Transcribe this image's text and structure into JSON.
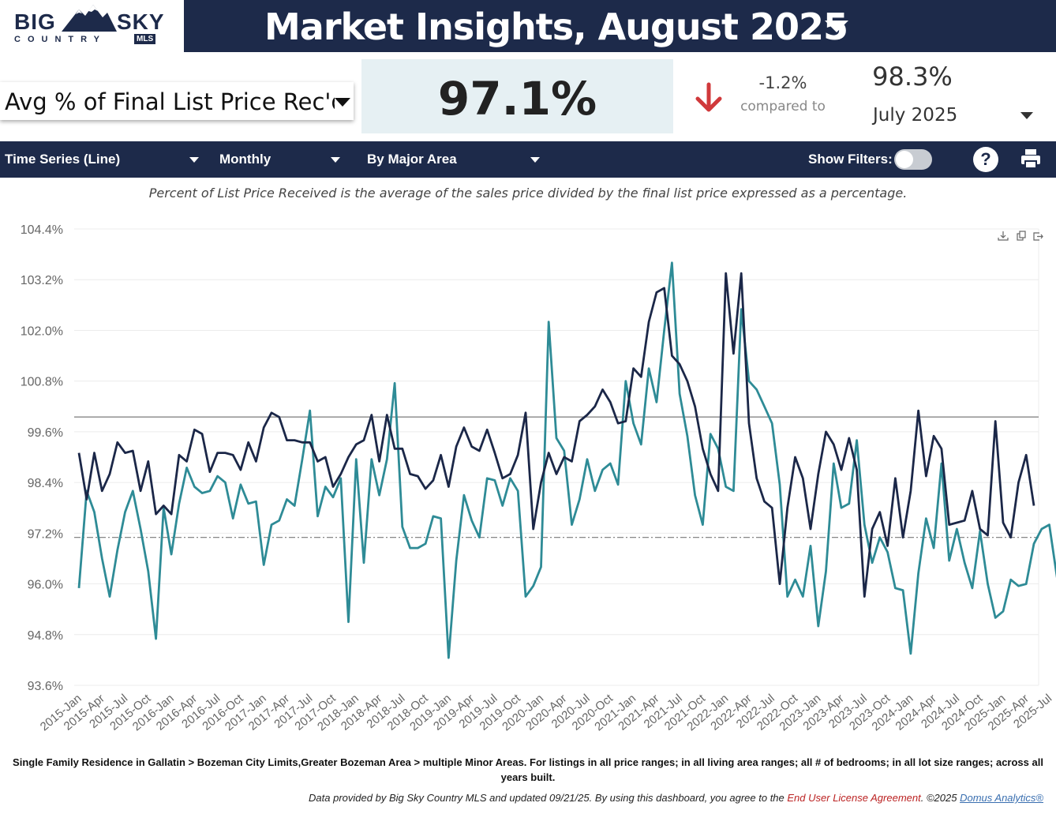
{
  "header": {
    "logo_big": "BIG",
    "logo_sky": "SKY",
    "logo_country": "COUNTRY",
    "logo_mls": "MLS",
    "title": "Market Insights, August 2025"
  },
  "metric": {
    "selected": "Avg % of Final List Price Rec'd",
    "value": "97.1%",
    "change": "-1.2%",
    "compared_to": "compared to",
    "prev_value": "98.3%",
    "prev_period": "July 2025"
  },
  "toolbar": {
    "chart_type": "Time Series (Line)",
    "interval": "Monthly",
    "grouping": "By Major Area",
    "show_filters": "Show Filters:",
    "help": "?"
  },
  "description": "Percent of List Price Received is the average of the sales price divided by the final list price expressed as a percentage.",
  "footnote": "Single Family Residence in Gallatin > Bozeman City Limits,Greater Bozeman Area > multiple Minor Areas. For listings in all price ranges; in all living area ranges; all # of bedrooms; in all lot size ranges; across all years built.",
  "credit": {
    "text": "Data provided by Big Sky Country MLS and updated 09/21/25.  By using this dashboard, you agree to the",
    "eula": "End User License Agreement",
    "copyright": ".  ©2025",
    "domus": "Domus Analytics®"
  },
  "colors": {
    "navy": "#1d2a4a",
    "series_dark": "#1b2748",
    "series_teal": "#2e8b96",
    "down_arrow": "#d0393b"
  },
  "chart_data": {
    "type": "line",
    "ylim": [
      93.6,
      104.4
    ],
    "y_ticks": [
      "104.4%",
      "103.2%",
      "102.0%",
      "100.8%",
      "99.6%",
      "98.4%",
      "97.2%",
      "96.0%",
      "94.8%",
      "93.6%"
    ],
    "x_labels": [
      "2015-Jan",
      "2015-Apr",
      "2015-Jul",
      "2015-Oct",
      "2016-Jan",
      "2016-Apr",
      "2016-Jul",
      "2016-Oct",
      "2017-Jan",
      "2017-Apr",
      "2017-Jul",
      "2017-Oct",
      "2018-Jan",
      "2018-Apr",
      "2018-Jul",
      "2018-Oct",
      "2019-Jan",
      "2019-Apr",
      "2019-Jul",
      "2019-Oct",
      "2020-Jan",
      "2020-Apr",
      "2020-Jul",
      "2020-Oct",
      "2021-Jan",
      "2021-Apr",
      "2021-Jul",
      "2021-Oct",
      "2022-Jan",
      "2022-Apr",
      "2022-Jul",
      "2022-Oct",
      "2023-Jan",
      "2023-Apr",
      "2023-Jul",
      "2023-Oct",
      "2024-Jan",
      "2024-Apr",
      "2024-Jul",
      "2024-Oct",
      "2025-Jan",
      "2025-Apr",
      "2025-Jul"
    ],
    "reference_lines": [
      {
        "value": 99.95,
        "style": "solid"
      },
      {
        "value": 97.1,
        "style": "dashdot"
      }
    ],
    "series": [
      {
        "color": "#1b2748",
        "values": [
          99.1,
          98.0,
          99.1,
          98.2,
          98.6,
          99.35,
          99.1,
          99.15,
          98.2,
          98.9,
          97.65,
          97.85,
          97.65,
          99.05,
          98.9,
          99.65,
          99.55,
          98.65,
          99.1,
          99.1,
          99.05,
          98.7,
          99.35,
          98.9,
          99.7,
          100.05,
          99.95,
          99.4,
          99.4,
          99.35,
          99.35,
          98.9,
          99.0,
          98.3,
          98.6,
          99.0,
          99.3,
          99.4,
          100.0,
          98.9,
          100.0,
          99.2,
          99.2,
          98.6,
          98.55,
          98.25,
          98.45,
          99.05,
          98.3,
          99.25,
          99.7,
          99.25,
          99.15,
          99.65,
          99.1,
          98.5,
          98.6,
          99.05,
          100.05,
          97.3,
          98.4,
          99.1,
          98.6,
          99.0,
          98.9,
          99.85,
          100.0,
          100.2,
          100.6,
          100.3,
          99.8,
          99.85,
          101.1,
          100.9,
          102.2,
          102.9,
          103.0,
          101.4,
          101.2,
          100.8,
          100.2,
          99.2,
          98.6,
          98.2,
          103.35,
          101.45,
          103.35,
          99.8,
          98.5,
          97.95,
          97.8,
          96.0,
          97.8,
          99.0,
          98.5,
          97.3,
          98.6,
          99.6,
          99.3,
          98.7,
          99.45,
          98.7,
          95.7,
          97.3,
          97.7,
          96.9,
          98.5,
          97.1,
          98.2,
          100.1,
          98.55,
          99.5,
          99.2,
          97.4,
          97.45,
          97.5,
          98.2,
          97.3,
          97.15,
          99.85,
          97.45,
          97.1,
          98.4,
          99.05,
          97.85
        ]
      },
      {
        "color": "#2e8b96",
        "values": [
          95.9,
          98.2,
          97.7,
          96.6,
          95.7,
          96.8,
          97.7,
          98.2,
          97.3,
          96.3,
          94.7,
          97.8,
          96.7,
          97.9,
          98.75,
          98.3,
          98.15,
          98.2,
          98.55,
          98.4,
          97.55,
          98.35,
          97.9,
          97.95,
          96.45,
          97.4,
          97.5,
          98.0,
          97.85,
          98.95,
          100.1,
          97.6,
          98.3,
          98.05,
          98.5,
          95.1,
          98.95,
          96.5,
          98.95,
          98.1,
          98.95,
          100.75,
          97.35,
          96.85,
          96.85,
          96.95,
          97.6,
          97.55,
          94.25,
          96.55,
          98.1,
          97.5,
          97.1,
          98.5,
          98.45,
          97.85,
          98.5,
          98.2,
          95.7,
          95.95,
          96.4,
          102.2,
          99.45,
          99.15,
          97.4,
          98.0,
          98.95,
          98.2,
          98.7,
          98.85,
          98.35,
          100.8,
          99.8,
          99.3,
          101.1,
          100.3,
          102.0,
          103.6,
          100.5,
          99.5,
          98.1,
          97.4,
          99.55,
          99.2,
          98.3,
          98.2,
          102.5,
          100.8,
          100.6,
          100.2,
          99.8,
          98.35,
          95.7,
          96.1,
          95.7,
          96.9,
          95.0,
          96.3,
          98.85,
          97.8,
          97.9,
          99.4,
          97.4,
          96.5,
          97.1,
          96.75,
          95.9,
          95.85,
          94.35,
          96.25,
          97.55,
          96.85,
          98.85,
          96.55,
          97.3,
          96.5,
          95.9,
          97.25,
          96.0,
          95.2,
          95.35,
          96.1,
          95.95,
          96.0,
          96.95,
          97.3,
          97.4,
          96.15
        ]
      }
    ]
  }
}
